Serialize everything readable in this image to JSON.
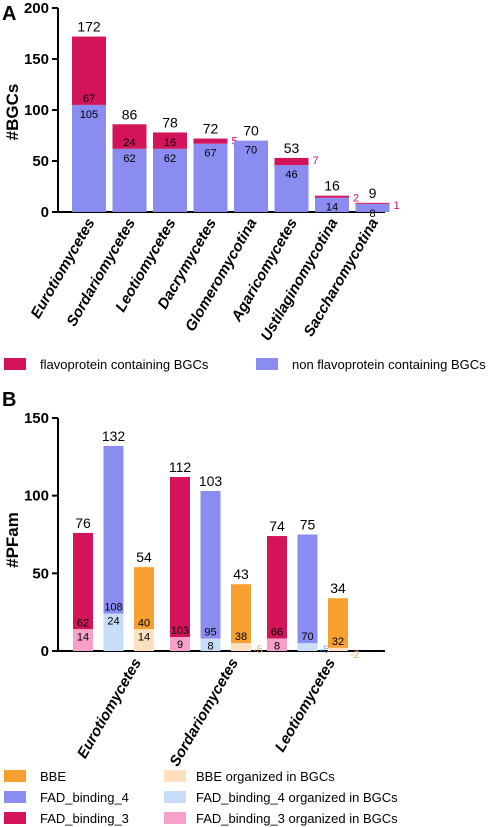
{
  "colors": {
    "flavo": "#d4145a",
    "nonflavo": "#8a8cf0",
    "bbe": "#f7a030",
    "bbe_bgc": "#fde0c0",
    "fad4_bgc": "#c8def8",
    "fad3_bgc": "#f7a0c8"
  },
  "chart_data": [
    {
      "panel": "A",
      "type": "bar",
      "stacked": true,
      "ylabel": "#BGCs",
      "ylim": [
        0,
        200
      ],
      "yticks": [
        0,
        50,
        100,
        150,
        200
      ],
      "categories": [
        "Eurotiomycetes",
        "Sordariomycetes",
        "Leotiomycetes",
        "Dacrymycetes",
        "Glomeromycotina",
        "Agaricomycetes",
        "Ustilaginomycotina",
        "Saccharomycotina"
      ],
      "totals": [
        "172",
        "86",
        "78",
        "72",
        "70",
        "53",
        "16",
        "9"
      ],
      "series": [
        {
          "name": "non flavoprotein containing BGCs",
          "values": [
            105,
            62,
            62,
            67,
            70,
            46,
            14,
            8
          ],
          "labels": [
            "105",
            "62",
            "62",
            "67",
            "70",
            "46",
            "14",
            "8"
          ]
        },
        {
          "name": "flavoprotein containing BGCs",
          "values": [
            67,
            24,
            16,
            5,
            0,
            7,
            2,
            1
          ],
          "labels": [
            "67",
            "24",
            "16",
            "5",
            "",
            "7",
            "2",
            "1"
          ]
        }
      ],
      "legend": [
        "flavoprotein containing BGCs",
        "non flavoprotein containing BGCs"
      ],
      "legend_position": "bottom"
    },
    {
      "panel": "B",
      "type": "bar",
      "grouped": true,
      "ylabel": "#PFam",
      "ylim": [
        0,
        150
      ],
      "yticks": [
        0,
        50,
        100,
        150
      ],
      "categories": [
        "Eurotiomycetes",
        "Sordariomycetes",
        "Leotiomycetes"
      ],
      "series": [
        {
          "name": "FAD_binding_3",
          "values": [
            76,
            112,
            74
          ],
          "labels": [
            "76",
            "112",
            "74"
          ]
        },
        {
          "name": "FAD_binding_4",
          "values": [
            132,
            103,
            75
          ],
          "labels": [
            "132",
            "103",
            "75"
          ]
        },
        {
          "name": "BBE",
          "values": [
            54,
            43,
            34
          ],
          "labels": [
            "54",
            "43",
            "34"
          ]
        }
      ],
      "in_bgc": [
        {
          "name": "FAD_binding_3 organized in BGCs",
          "values": [
            14,
            9,
            8
          ],
          "remainder": [
            62,
            103,
            66
          ]
        },
        {
          "name": "FAD_binding_4 organized in BGCs",
          "values": [
            24,
            8,
            5
          ],
          "remainder": [
            108,
            95,
            70
          ]
        },
        {
          "name": "BBE organized in BGCs",
          "values": [
            14,
            5,
            2
          ],
          "remainder": [
            40,
            38,
            32
          ]
        }
      ],
      "legend": [
        "BBE",
        "BBE organized in BGCs",
        "FAD_binding_4",
        "FAD_binding_4 organized in BGCs",
        "FAD_binding_3",
        "FAD_binding_3 organized in BGCs"
      ],
      "legend_position": "bottom"
    }
  ]
}
